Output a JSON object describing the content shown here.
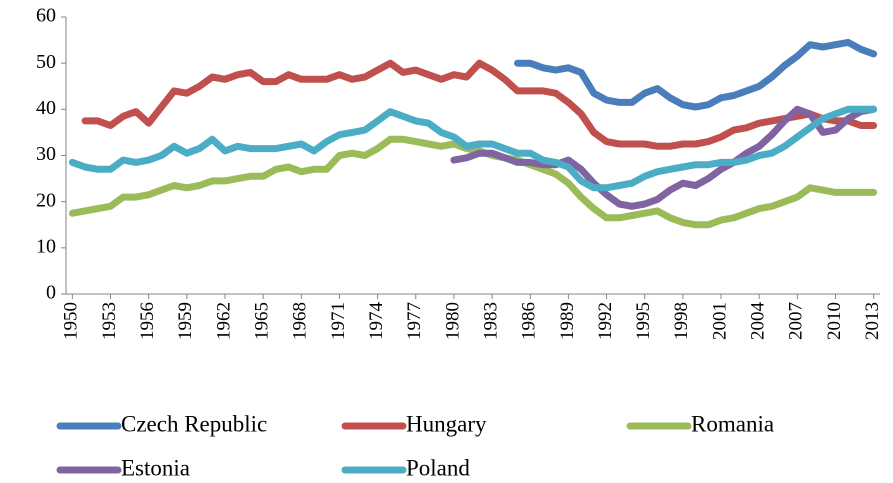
{
  "chart_data": {
    "type": "line",
    "x": [
      1950,
      1951,
      1952,
      1953,
      1954,
      1955,
      1956,
      1957,
      1958,
      1959,
      1960,
      1961,
      1962,
      1963,
      1964,
      1965,
      1966,
      1967,
      1968,
      1969,
      1970,
      1971,
      1972,
      1973,
      1974,
      1975,
      1976,
      1977,
      1978,
      1979,
      1980,
      1981,
      1982,
      1983,
      1984,
      1985,
      1986,
      1987,
      1988,
      1989,
      1990,
      1991,
      1992,
      1993,
      1994,
      1995,
      1996,
      1997,
      1998,
      1999,
      2000,
      2001,
      2002,
      2003,
      2004,
      2005,
      2006,
      2007,
      2008,
      2009,
      2010,
      2011,
      2012,
      2013
    ],
    "xlim": [
      1949.5,
      2013.5
    ],
    "xticks": [
      1950,
      1953,
      1956,
      1959,
      1962,
      1965,
      1968,
      1971,
      1974,
      1977,
      1980,
      1983,
      1986,
      1989,
      1992,
      1995,
      1998,
      2001,
      2004,
      2007,
      2010,
      2013
    ],
    "ylim": [
      0,
      60
    ],
    "yticks": [
      0,
      10,
      20,
      30,
      40,
      50,
      60
    ],
    "grid": false,
    "legend": "bottom",
    "series": [
      {
        "name": "Czech Republic",
        "color": "#4a7ebb",
        "values": [
          null,
          null,
          null,
          null,
          null,
          null,
          null,
          null,
          null,
          null,
          null,
          null,
          null,
          null,
          null,
          null,
          null,
          null,
          null,
          null,
          null,
          null,
          null,
          null,
          null,
          null,
          null,
          null,
          null,
          null,
          null,
          null,
          null,
          null,
          null,
          50,
          50,
          49,
          48.5,
          49,
          48,
          43.5,
          42,
          41.5,
          41.5,
          43.5,
          44.5,
          42.5,
          41,
          40.5,
          41,
          42.5,
          43,
          44,
          45,
          47,
          49.5,
          51.5,
          54,
          53.5,
          54,
          54.5,
          53,
          52
        ]
      },
      {
        "name": "Hungary",
        "color": "#c0504d",
        "values": [
          null,
          37.5,
          37.5,
          36.5,
          38.5,
          39.5,
          37,
          40.5,
          44,
          43.5,
          45,
          47,
          46.5,
          47.5,
          48,
          46,
          46,
          47.5,
          46.5,
          46.5,
          46.5,
          47.5,
          46.5,
          47,
          48.5,
          50,
          48,
          48.5,
          47.5,
          46.5,
          47.5,
          47,
          50,
          48.5,
          46.5,
          44,
          44,
          44,
          43.5,
          41.5,
          39,
          35,
          33,
          32.5,
          32.5,
          32.5,
          32,
          32,
          32.5,
          32.5,
          33,
          34,
          35.5,
          36,
          37,
          37.5,
          38,
          38.5,
          39,
          38,
          37.5,
          37.5,
          36.5,
          36.5
        ]
      },
      {
        "name": "Romania",
        "color": "#9bbb59",
        "values": [
          17.5,
          18,
          18.5,
          19,
          21,
          21,
          21.5,
          22.5,
          23.5,
          23,
          23.5,
          24.5,
          24.5,
          25,
          25.5,
          25.5,
          27,
          27.5,
          26.5,
          27,
          27,
          30,
          30.5,
          30,
          31.5,
          33.5,
          33.5,
          33,
          32.5,
          32,
          32.5,
          31.5,
          31,
          30,
          29.5,
          29,
          28,
          27,
          26,
          24,
          21,
          18.5,
          16.5,
          16.5,
          17,
          17.5,
          18,
          16.5,
          15.5,
          15,
          15,
          16,
          16.5,
          17.5,
          18.5,
          19,
          20,
          21,
          23,
          22.5,
          22,
          22,
          22,
          22
        ]
      },
      {
        "name": "Estonia",
        "color": "#8064a2",
        "values": [
          null,
          null,
          null,
          null,
          null,
          null,
          null,
          null,
          null,
          null,
          null,
          null,
          null,
          null,
          null,
          null,
          null,
          null,
          null,
          null,
          null,
          null,
          null,
          null,
          null,
          null,
          null,
          null,
          null,
          null,
          29,
          29.5,
          30.5,
          30.5,
          29.5,
          28.5,
          28.5,
          28,
          28,
          29,
          27,
          24,
          21.5,
          19.5,
          19,
          19.5,
          20.5,
          22.5,
          24,
          23.5,
          25,
          27,
          28.5,
          30.5,
          32,
          34.5,
          37.5,
          40,
          39,
          35,
          35.5,
          38,
          39.5,
          40
        ]
      },
      {
        "name": "Poland",
        "color": "#4bacc6",
        "values": [
          28.5,
          27.5,
          27,
          27,
          29,
          28.5,
          29,
          30,
          32,
          30.5,
          31.5,
          33.5,
          31,
          32,
          31.5,
          31.5,
          31.5,
          32,
          32.5,
          31,
          33,
          34.5,
          35,
          35.5,
          37.5,
          39.5,
          38.5,
          37.5,
          37,
          35,
          34,
          32,
          32.5,
          32.5,
          31.5,
          30.5,
          30.5,
          29,
          28.5,
          27.5,
          24.5,
          23,
          23,
          23.5,
          24,
          25.5,
          26.5,
          27,
          27.5,
          28,
          28,
          28.5,
          28.5,
          29,
          30,
          30.5,
          32,
          34,
          36,
          38,
          39,
          40,
          40,
          40
        ]
      }
    ]
  }
}
